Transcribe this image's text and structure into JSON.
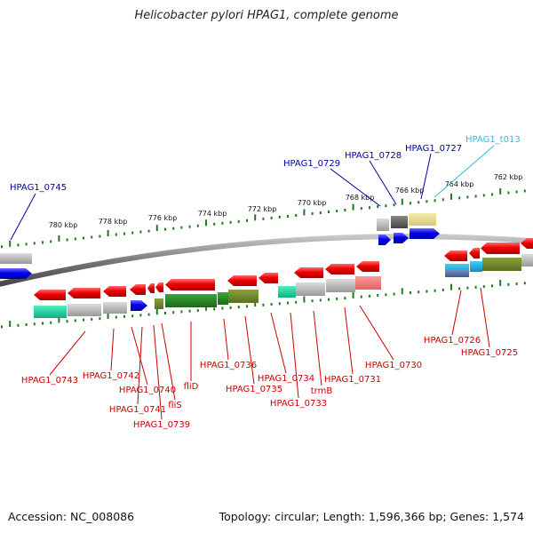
{
  "title": "Helicobacter pylori HPAG1, complete genome",
  "accession": "Accession: NC_008086",
  "summary": "Topology: circular; Length: 1,596,366 bp; Genes: 1,574",
  "ruler_ticks": [
    "780 kbp",
    "778 kbp",
    "776 kbp",
    "774 kbp",
    "772 kbp",
    "770 kbp",
    "768 kbp",
    "766 kbp",
    "764 kbp",
    "762 kbp"
  ],
  "top_labels": [
    {
      "text": "HPAG1_0745",
      "color": "#0000aa"
    },
    {
      "text": "HPAG1_0729",
      "color": "#0000aa"
    },
    {
      "text": "HPAG1_0728",
      "color": "#0000aa"
    },
    {
      "text": "HPAG1_0727",
      "color": "#0000aa"
    },
    {
      "text": "HPAG1_t013",
      "color": "#33bbdd"
    }
  ],
  "bottom_labels": [
    "HPAG1_0743",
    "HPAG1_0742",
    "HPAG1_0740",
    "HPAG1_0741",
    "HPAG1_0739",
    "fliS",
    "fliD",
    "HPAG1_0736",
    "HPAG1_0735",
    "HPAG1_0734",
    "HPAG1_0733",
    "trmB",
    "HPAG1_0731",
    "HPAG1_0730",
    "HPAG1_0726",
    "HPAG1_0725"
  ],
  "colors": {
    "forward_gene": "#0000ee",
    "reverse_gene": "#ee0000",
    "top_label": "#0000aa",
    "trna_label": "#33bbdd",
    "bottom_label": "#cc0000",
    "ruler": "#227722"
  }
}
